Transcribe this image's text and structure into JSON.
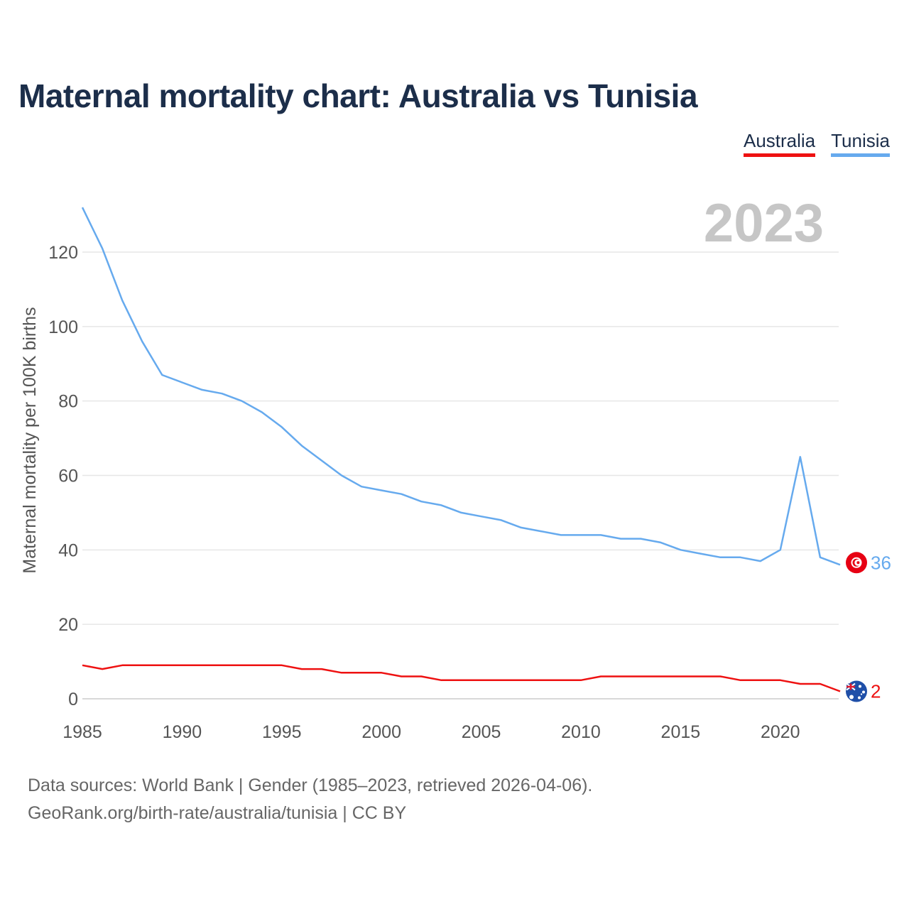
{
  "title": "Maternal mortality chart: Australia vs Tunisia",
  "legend": {
    "australia": "Australia",
    "tunisia": "Tunisia"
  },
  "year_watermark": "2023",
  "footer": {
    "source": "Data sources: World Bank | Gender (1985–2023, retrieved 2026-04-06).",
    "attribution": "GeoRank.org/birth-rate/australia/tunisia | CC BY"
  },
  "chart_data": {
    "type": "line",
    "title": "Maternal mortality chart: Australia vs Tunisia",
    "xlabel": "",
    "ylabel": "Maternal mortality per 100K births",
    "xlim": [
      1985,
      2023
    ],
    "ylim": [
      0,
      130
    ],
    "yticks": [
      0,
      20,
      40,
      60,
      80,
      100,
      120
    ],
    "xticks": [
      1985,
      1990,
      1995,
      2000,
      2005,
      2010,
      2015,
      2020
    ],
    "grid": true,
    "x": [
      1985,
      1986,
      1987,
      1988,
      1989,
      1990,
      1991,
      1992,
      1993,
      1994,
      1995,
      1996,
      1997,
      1998,
      1999,
      2000,
      2001,
      2002,
      2003,
      2004,
      2005,
      2006,
      2007,
      2008,
      2009,
      2010,
      2011,
      2012,
      2013,
      2014,
      2015,
      2016,
      2017,
      2018,
      2019,
      2020,
      2021,
      2022,
      2023
    ],
    "series": [
      {
        "name": "Tunisia",
        "color": "#66aaee",
        "end_label": "36",
        "values": [
          132,
          121,
          107,
          96,
          87,
          85,
          83,
          82,
          80,
          77,
          73,
          68,
          64,
          60,
          57,
          56,
          55,
          53,
          52,
          50,
          49,
          48,
          46,
          45,
          44,
          44,
          44,
          43,
          43,
          42,
          40,
          39,
          38,
          38,
          37,
          40,
          65,
          38,
          36
        ]
      },
      {
        "name": "Australia",
        "color": "#ee1111",
        "end_label": "2",
        "values": [
          9,
          8,
          9,
          9,
          9,
          9,
          9,
          9,
          9,
          9,
          9,
          8,
          8,
          7,
          7,
          7,
          6,
          6,
          5,
          5,
          5,
          5,
          5,
          5,
          5,
          5,
          6,
          6,
          6,
          6,
          6,
          6,
          6,
          5,
          5,
          5,
          4,
          4,
          2
        ]
      }
    ]
  }
}
